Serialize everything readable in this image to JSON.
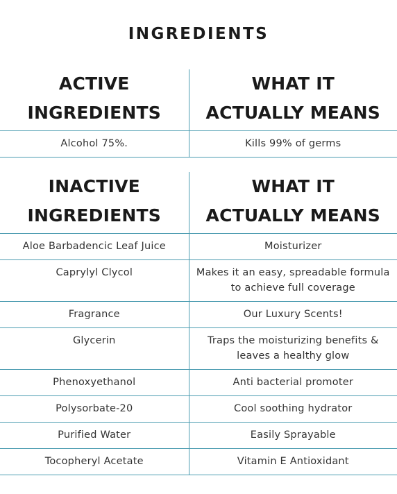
{
  "title": "INGREDIENTS",
  "active": {
    "header_left_line1": "ACTIVE",
    "header_left_line2": "INGREDIENTS",
    "header_right_line1": "WHAT IT",
    "header_right_line2": "ACTUALLY MEANS",
    "rows": [
      {
        "ingredient": "Alcohol 75%.",
        "meaning": "Kills 99% of germs"
      }
    ]
  },
  "inactive": {
    "header_left_line1": "INACTIVE",
    "header_left_line2": "INGREDIENTS",
    "header_right_line1": "WHAT IT",
    "header_right_line2": "ACTUALLY MEANS",
    "rows": [
      {
        "ingredient": "Aloe Barbadencic Leaf Juice",
        "meaning": "Moisturizer"
      },
      {
        "ingredient": "Caprylyl Clycol",
        "meaning": "Makes it an easy, spreadable formula to achieve full coverage"
      },
      {
        "ingredient": "Fragrance",
        "meaning": "Our Luxury Scents!"
      },
      {
        "ingredient": "Glycerin",
        "meaning": "Traps the moisturizing benefits & leaves a healthy glow"
      },
      {
        "ingredient": "Phenoxyethanol",
        "meaning": "Anti bacterial promoter"
      },
      {
        "ingredient": "Polysorbate-20",
        "meaning": "Cool soothing hydrator"
      },
      {
        "ingredient": "Purified Water",
        "meaning": "Easily Sprayable"
      },
      {
        "ingredient": "Tocopheryl Acetate",
        "meaning": "Vitamin E Antioxidant"
      }
    ]
  },
  "colors": {
    "rule": "#4a9bb0",
    "heading_text": "#1a1a1a",
    "body_text": "#333333"
  }
}
